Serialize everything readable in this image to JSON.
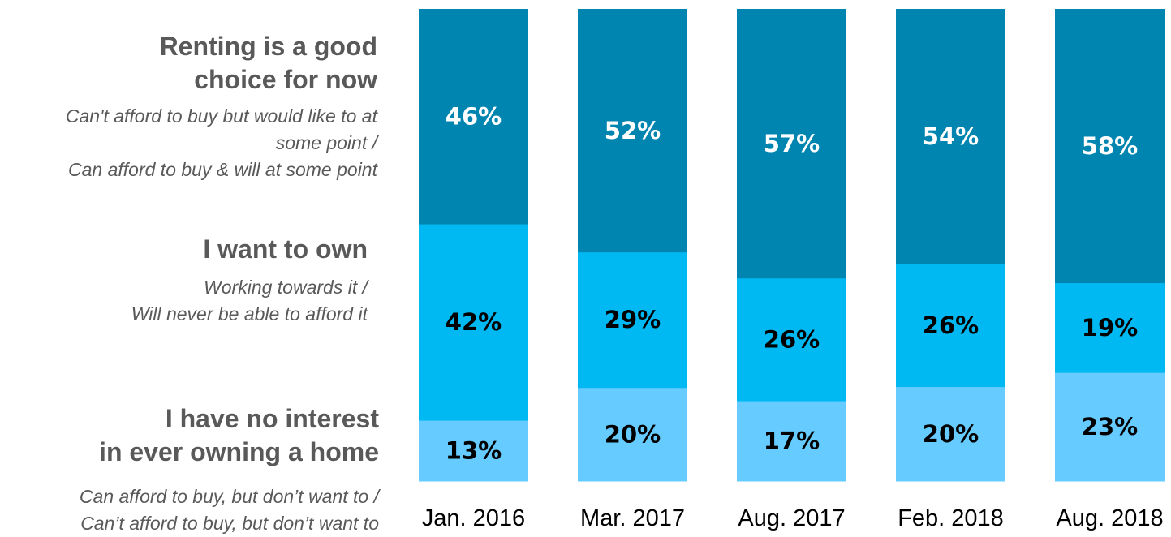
{
  "legend": [
    {
      "key": "rent",
      "title": "Renting is a good\nchoice for now",
      "subtitle": "Can't afford to buy but would like to at\nsome point /\nCan afford to buy & will at some point"
    },
    {
      "key": "own",
      "title": "I want to own",
      "subtitle": "Working towards it /\nWill never be able to afford it"
    },
    {
      "key": "none",
      "title": "I have no interest\nin ever owning a home",
      "subtitle": "Can afford to buy, but don’t want to /\nCan’t afford to buy, but don’t want to"
    }
  ],
  "chart_data": {
    "type": "bar",
    "stacked": true,
    "orientation": "vertical",
    "categories": [
      "Jan. 2016",
      "Mar. 2017",
      "Aug. 2017",
      "Feb. 2018",
      "Aug. 2018"
    ],
    "series": [
      {
        "key": "none",
        "values": [
          13,
          20,
          17,
          20,
          23
        ],
        "labels": [
          "13%",
          "20%",
          "17%",
          "20%",
          "23%"
        ],
        "color": "#66ccff",
        "label_color": "#000000"
      },
      {
        "key": "own",
        "values": [
          42,
          29,
          26,
          26,
          19
        ],
        "labels": [
          "42%",
          "29%",
          "26%",
          "26%",
          "19%"
        ],
        "color": "#00b8f2",
        "label_color": "#000000"
      },
      {
        "key": "rent",
        "values": [
          46,
          52,
          57,
          54,
          58
        ],
        "labels": [
          "46%",
          "52%",
          "57%",
          "54%",
          "58%"
        ],
        "color": "#0085b0",
        "label_color": "#ffffff"
      }
    ],
    "grid": false,
    "legend_placement": "left"
  }
}
